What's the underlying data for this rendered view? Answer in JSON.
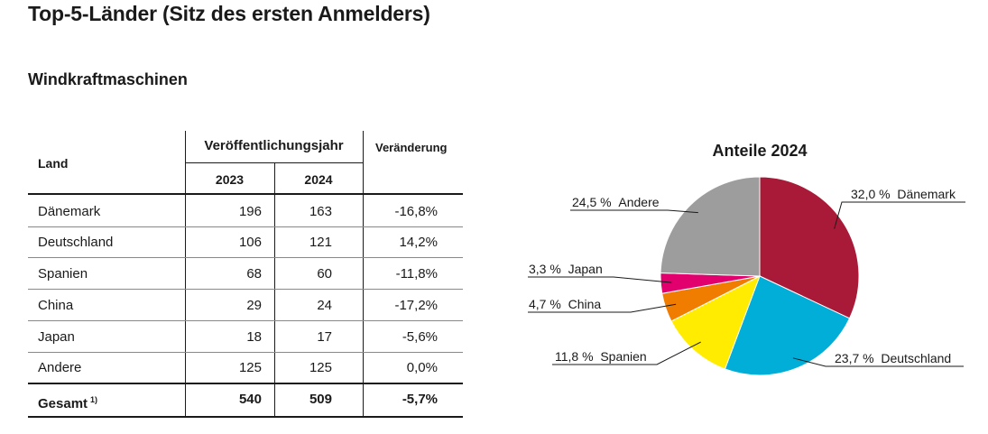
{
  "page_title": "Top-5-Länder (Sitz des ersten Anmelders)",
  "section_title": "Windkraftmaschinen",
  "table": {
    "col_land": "Land",
    "col_year_group": "Veröffentlichungsjahr",
    "col_change": "Veränderung",
    "years": [
      "2023",
      "2024"
    ],
    "rows": [
      {
        "land": "Dänemark",
        "v2023": "196",
        "v2024": "163",
        "change": "-16,8%"
      },
      {
        "land": "Deutschland",
        "v2023": "106",
        "v2024": "121",
        "change": "14,2%"
      },
      {
        "land": "Spanien",
        "v2023": "68",
        "v2024": "60",
        "change": "-11,8%"
      },
      {
        "land": "China",
        "v2023": "29",
        "v2024": "24",
        "change": "-17,2%"
      },
      {
        "land": "Japan",
        "v2023": "18",
        "v2024": "17",
        "change": "-5,6%"
      },
      {
        "land": "Andere",
        "v2023": "125",
        "v2024": "125",
        "change": "0,0%"
      }
    ],
    "total": {
      "land": "Gesamt",
      "footnote": "1)",
      "v2023": "540",
      "v2024": "509",
      "change": "-5,7%"
    }
  },
  "chart_data": {
    "type": "pie",
    "title": "Anteile 2024",
    "slices": [
      {
        "label": "Dänemark",
        "value": 32.0,
        "value_label": "32,0 %",
        "color": "#a81a37"
      },
      {
        "label": "Deutschland",
        "value": 23.7,
        "value_label": "23,7 %",
        "color": "#00aed8"
      },
      {
        "label": "Spanien",
        "value": 11.8,
        "value_label": "11,8 %",
        "color": "#ffec00"
      },
      {
        "label": "China",
        "value": 4.7,
        "value_label": "4,7 %",
        "color": "#f07d00"
      },
      {
        "label": "Japan",
        "value": 3.3,
        "value_label": "3,3 %",
        "color": "#e2006e"
      },
      {
        "label": "Andere",
        "value": 24.5,
        "value_label": "24,5 %",
        "color": "#9d9d9d"
      }
    ]
  }
}
